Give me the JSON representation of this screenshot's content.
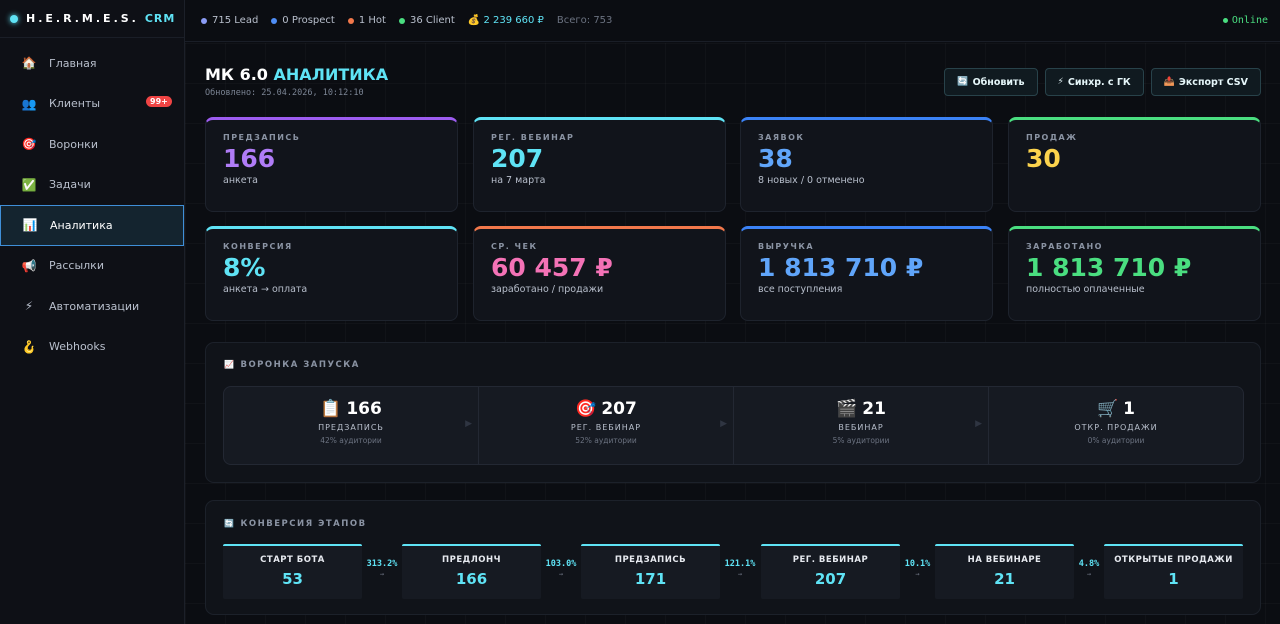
{
  "brand": {
    "name": "H.E.R.M.E.S.",
    "accent": "CRM"
  },
  "sidebar": {
    "items": [
      {
        "icon": "🏠",
        "label": "Главная",
        "badge": ""
      },
      {
        "icon": "👥",
        "label": "Клиенты",
        "badge": "99+"
      },
      {
        "icon": "🎯",
        "label": "Воронки",
        "badge": ""
      },
      {
        "icon": "✅",
        "label": "Задачи",
        "badge": ""
      },
      {
        "icon": "📊",
        "label": "Аналитика",
        "badge": ""
      },
      {
        "icon": "📢",
        "label": "Рассылки",
        "badge": ""
      },
      {
        "icon": "⚡",
        "label": "Автоматизации",
        "badge": ""
      },
      {
        "icon": "🪝",
        "label": "Webhooks",
        "badge": ""
      }
    ]
  },
  "topbar": {
    "stats": [
      {
        "text": "715 Lead",
        "color": "#8b9cf5"
      },
      {
        "text": "0 Prospect",
        "color": "#4f8df5"
      },
      {
        "text": "1 Hot",
        "color": "#f2784b"
      },
      {
        "text": "36 Client",
        "color": "#4ade80"
      }
    ],
    "money": "💰 2 239 660 ₽",
    "total": "Всего: 753",
    "online": "Online"
  },
  "header": {
    "title_main": "МК 6.0",
    "title_accent": "АНАЛИТИКА",
    "updated": "Обновлено: 25.04.2026, 10:12:10",
    "buttons": [
      {
        "icon": "🔄",
        "label": "Обновить"
      },
      {
        "icon": "⚡",
        "label": "Синхр. с ГК"
      },
      {
        "icon": "📤",
        "label": "Экспорт CSV"
      }
    ]
  },
  "kpis": [
    {
      "label": "ПРЕДЗАПИСЬ",
      "value": "166",
      "sub": "анкета",
      "color": "#b07cf7",
      "bar": "#9d5cf0"
    },
    {
      "label": "РЕГ. ВЕБИНАР",
      "value": "207",
      "sub": "на 7 марта",
      "color": "#5fe3f5",
      "bar": "#5fe3f5"
    },
    {
      "label": "ЗАЯВОК",
      "value": "38",
      "sub": "8 новых / 0 отменено",
      "color": "#60a5fa",
      "bar": "#3b82f6"
    },
    {
      "label": "ПРОДАЖ",
      "value": "30",
      "sub": "",
      "color": "#fcd34d",
      "bar": "#4ade80"
    },
    {
      "label": "КОНВЕРСИЯ",
      "value": "8%",
      "sub": "анкета → оплата",
      "color": "#5fe3f5",
      "bar": "#5fe3f5"
    },
    {
      "label": "СР. ЧЕК",
      "value": "60 457 ₽",
      "sub": "заработано / продажи",
      "color": "#f472b6",
      "bar": "#f2784b"
    },
    {
      "label": "ВЫРУЧКА",
      "value": "1 813 710 ₽",
      "sub": "все поступления",
      "color": "#60a5fa",
      "bar": "#3b82f6"
    },
    {
      "label": "ЗАРАБОТАНО",
      "value": "1 813 710 ₽",
      "sub": "полностью оплаченные",
      "color": "#4ade80",
      "bar": "#4ade80"
    }
  ],
  "funnel": {
    "title": "ВОРОНКА ЗАПУСКА",
    "icon": "📈",
    "steps": [
      {
        "emoji": "📋",
        "value": "166",
        "name": "ПРЕДЗАПИСЬ",
        "pct": "42% аудитории"
      },
      {
        "emoji": "🎯",
        "value": "207",
        "name": "РЕГ. ВЕБИНАР",
        "pct": "52% аудитории"
      },
      {
        "emoji": "🎬",
        "value": "21",
        "name": "ВЕБИНАР",
        "pct": "5% аудитории"
      },
      {
        "emoji": "🛒",
        "value": "1",
        "name": "ОТКР. ПРОДАЖИ",
        "pct": "0% аудитории"
      }
    ]
  },
  "conversion": {
    "title": "КОНВЕРСИЯ ЭТАПОВ",
    "icon": "🔄",
    "stages": [
      {
        "name": "СТАРТ БОТА",
        "value": "53"
      },
      {
        "name": "ПРЕДЛОНЧ",
        "value": "166"
      },
      {
        "name": "ПРЕДЗАПИСЬ",
        "value": "171"
      },
      {
        "name": "РЕГ. ВЕБИНАР",
        "value": "207"
      },
      {
        "name": "НА ВЕБИНАРЕ",
        "value": "21"
      },
      {
        "name": "ОТКРЫТЫЕ ПРОДАЖИ",
        "value": "1"
      }
    ],
    "rates": [
      "313.2%",
      "103.0%",
      "121.1%",
      "10.1%",
      "4.8%"
    ],
    "arrow": "→"
  }
}
